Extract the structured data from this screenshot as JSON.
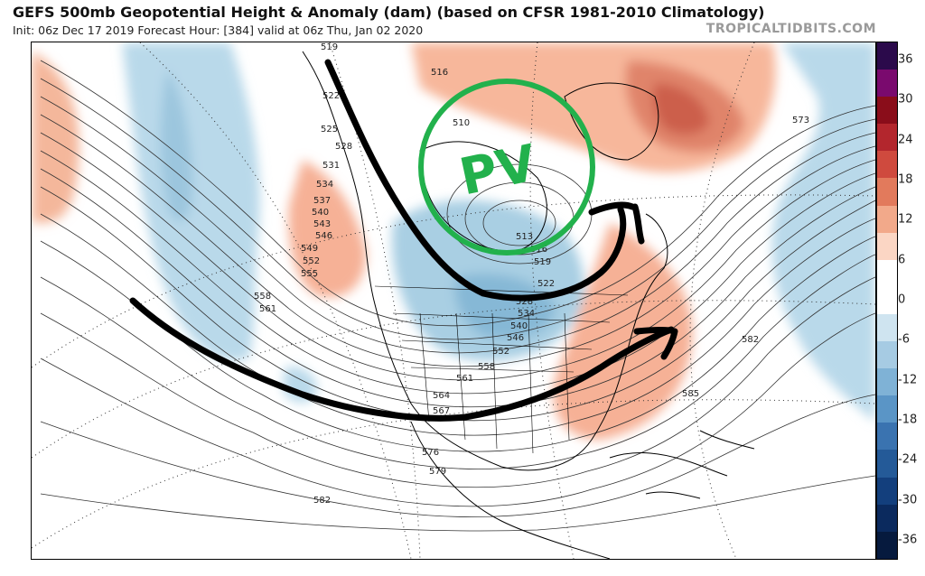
{
  "header": {
    "title": "GEFS 500mb Geopotential Height & Anomaly (dam) (based on CFSR 1981-2010 Climatology)",
    "subtitle": "Init: 06z Dec 17 2019   Forecast Hour: [384]   valid at 06z Thu, Jan 02 2020",
    "brand": "TROPICALTIDBITS.COM"
  },
  "annotation": {
    "pv_label": "PV"
  },
  "contour_labels": [
    "519",
    "522",
    "525",
    "528",
    "531",
    "534",
    "537",
    "540",
    "543",
    "546",
    "549",
    "552",
    "555",
    "558",
    "561",
    "516",
    "510",
    "513",
    "516",
    "519",
    "522",
    "528",
    "534",
    "540",
    "546",
    "552",
    "558",
    "561",
    "564",
    "567",
    "576",
    "579",
    "582",
    "585",
    "582",
    "573"
  ],
  "colorbar": {
    "ticks": [
      "36",
      "30",
      "24",
      "18",
      "12",
      "6",
      "0",
      "-6",
      "-12",
      "-18",
      "-24",
      "-30",
      "-36"
    ],
    "colors": [
      "#2b0a4b",
      "#7a0a6e",
      "#8a0d1a",
      "#b3262d",
      "#cf4a3e",
      "#e27a5c",
      "#f2a98a",
      "#fbd6c4",
      "#ffffff",
      "#ffffff",
      "#cfe4f0",
      "#a6cbe3",
      "#7fb2d6",
      "#5a95c6",
      "#3a73b0",
      "#245a98",
      "#133f7d",
      "#0b2a5e",
      "#061a3e"
    ],
    "neg_color_light": "#a9cfe3",
    "pos_color_light": "#f7b79b",
    "pos_color_dark": "#c95a4a",
    "annotation_color": "#22b14c"
  }
}
